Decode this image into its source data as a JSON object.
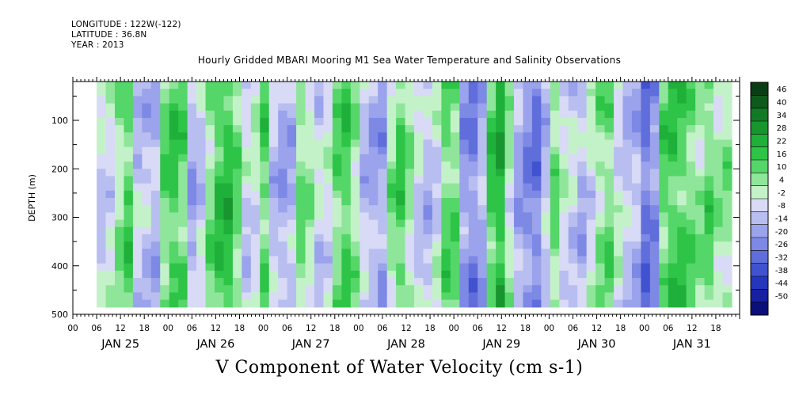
{
  "header": {
    "longitude": "LONGITUDE : 122W(-122)",
    "latitude": "LATITUDE : 36.8N",
    "year": "YEAR : 2013"
  },
  "chart_data": {
    "type": "heatmap",
    "title": "Hourly Gridded MBARI Mooring M1 Sea Water Temperature and Salinity Observations",
    "footer_label": "V Component of Water Velocity (cm s-1)",
    "ylabel": "DEPTH (m)",
    "ylim": [
      500,
      20
    ],
    "y_reversed": true,
    "yticks": [
      100,
      200,
      300,
      400,
      500
    ],
    "xlim_hours": [
      0,
      168
    ],
    "x_hour_ticks": [
      "00",
      "06",
      "12",
      "18",
      "00",
      "06",
      "12",
      "18",
      "00",
      "06",
      "12",
      "18",
      "00",
      "06",
      "12",
      "18",
      "00",
      "06",
      "12",
      "18",
      "00",
      "06",
      "12",
      "18",
      "00",
      "06",
      "12",
      "18"
    ],
    "x_day_labels": [
      "JAN 25",
      "JAN 26",
      "JAN 27",
      "JAN 28",
      "JAN 29",
      "JAN 30",
      "JAN 31"
    ],
    "colorbar": {
      "levels": [
        48,
        46,
        40,
        34,
        28,
        22,
        16,
        10,
        4,
        -2,
        -8,
        -14,
        -20,
        -26,
        -32,
        -38,
        -44,
        -50
      ],
      "tick_labels": [
        "46",
        "40",
        "34",
        "28",
        "22",
        "16",
        "10",
        "4",
        "-2",
        "-8",
        "-14",
        "-20",
        "-26",
        "-32",
        "-38",
        "-44",
        "-50"
      ],
      "colors": [
        "#0a3d14",
        "#0d5a1c",
        "#127a26",
        "#18952f",
        "#1fb03a",
        "#2ec447",
        "#55d668",
        "#8fe69a",
        "#c4f2c8",
        "#d8daf6",
        "#b9bef0",
        "#9aa3eb",
        "#7d89e4",
        "#5f6edb",
        "#4052cf",
        "#2536bd",
        "#1620a0",
        "#0b0f7a"
      ]
    },
    "data_extent": {
      "hour_start": 6,
      "hour_end": 166,
      "depth_top": 20,
      "depth_bottom": 485
    },
    "column_mean_v": [
      -6,
      -4,
      6,
      14,
      -8,
      -10,
      -12,
      10,
      16,
      12,
      -14,
      -8,
      8,
      18,
      20,
      10,
      -6,
      -2,
      12,
      -10,
      -14,
      -12,
      8,
      4,
      -6,
      -4,
      10,
      16,
      6,
      -10,
      -14,
      -16,
      6,
      14,
      4,
      -6,
      -10,
      -4,
      12,
      10,
      -18,
      -22,
      -14,
      14,
      22,
      2,
      -14,
      -20,
      -24,
      -10,
      8,
      -2,
      -6,
      -12,
      -4,
      6,
      10,
      -2,
      -10,
      -12,
      -26,
      -20,
      12,
      16,
      14,
      10,
      6,
      12,
      4,
      6
    ]
  }
}
